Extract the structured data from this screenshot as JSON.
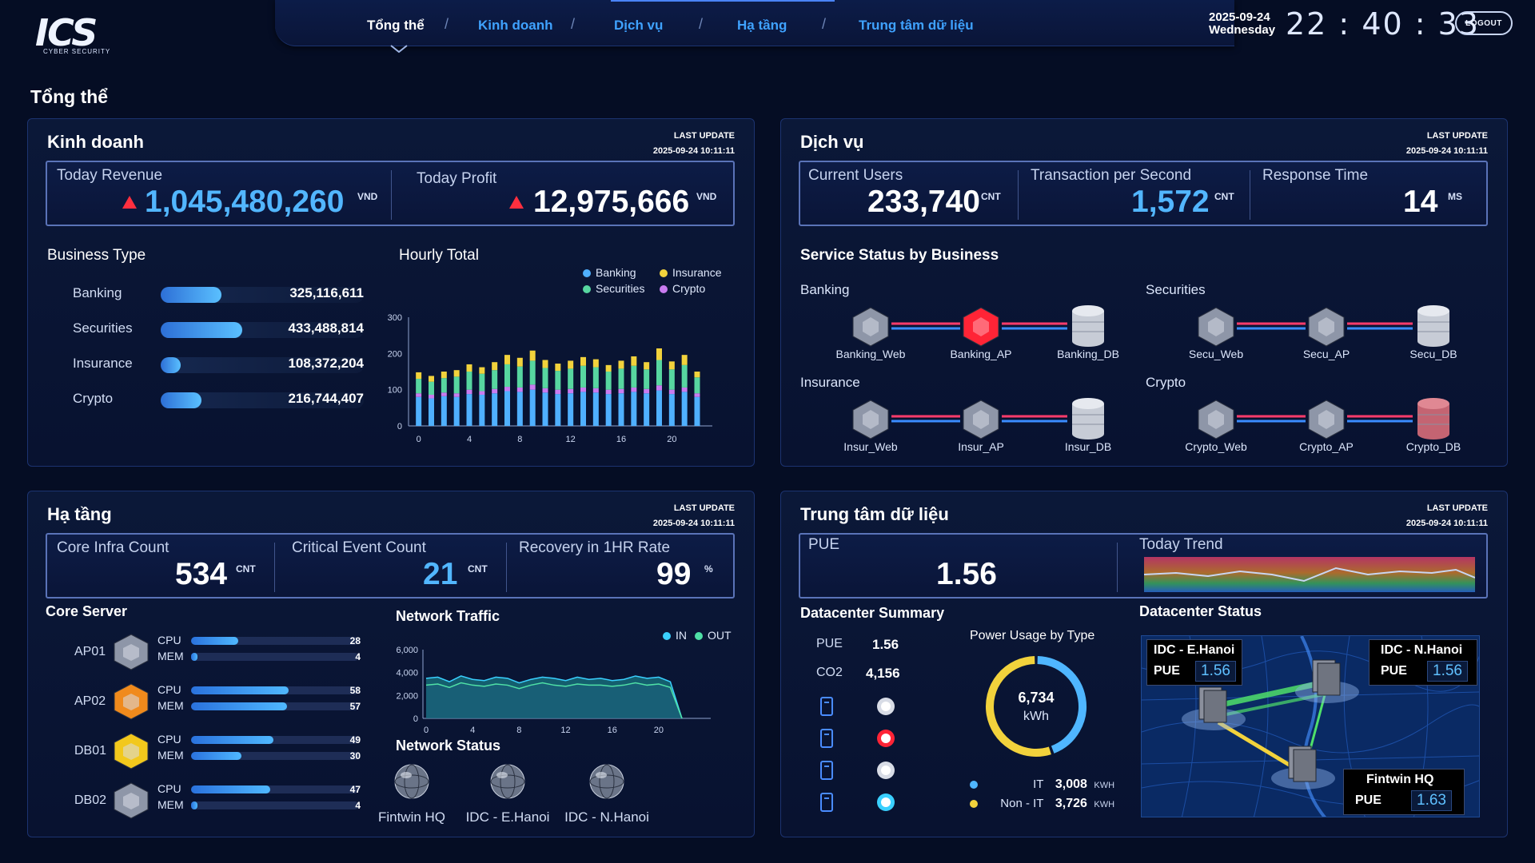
{
  "header": {
    "logo_text": "ICS",
    "logo_subtitle": "CYBER SECURITY",
    "tabs": [
      {
        "label": "Tổng thể"
      },
      {
        "label": "Kinh doanh"
      },
      {
        "label": "Dịch vụ"
      },
      {
        "label": "Hạ tầng"
      },
      {
        "label": "Trung tâm dữ liệu"
      }
    ],
    "active_tab": "Tổng thể",
    "date": "2025-09-24",
    "weekday": "Wednesday",
    "clock": "22 : 40 : 33",
    "logout_label": "LOGOUT"
  },
  "page_title": "Tổng thể",
  "kinhdoanh": {
    "title": "Kinh doanh",
    "last_update_label": "LAST UPDATE",
    "last_update": "2025-09-24  10:11:11",
    "revenue_label": "Today Revenue",
    "revenue_value": "1,045,480,260",
    "revenue_unit": "VND",
    "profit_label": "Today Profit",
    "profit_value": "12,975,666",
    "profit_unit": "VND",
    "business_type_title": "Business Type",
    "business_types": [
      {
        "name": "Banking",
        "value": "325,116,611",
        "fraction": 0.3
      },
      {
        "name": "Securities",
        "value": "433,488,814",
        "fraction": 0.4
      },
      {
        "name": "Insurance",
        "value": "108,372,204",
        "fraction": 0.1
      },
      {
        "name": "Crypto",
        "value": "216,744,407",
        "fraction": 0.2
      }
    ],
    "hourly_title": "Hourly Total",
    "legend": [
      {
        "name": "Banking",
        "color": "#4fb0ff"
      },
      {
        "name": "Insurance",
        "color": "#f2d23c"
      },
      {
        "name": "Securities",
        "color": "#57d6a0"
      },
      {
        "name": "Crypto",
        "color": "#c97cf0"
      }
    ]
  },
  "chart_data": {
    "type": "bar",
    "stacked": true,
    "x": [
      0,
      1,
      2,
      3,
      4,
      5,
      6,
      7,
      8,
      9,
      10,
      11,
      12,
      13,
      14,
      15,
      16,
      17,
      18,
      19,
      20,
      21,
      22
    ],
    "xticks": [
      "0",
      "4",
      "8",
      "12",
      "16",
      "20"
    ],
    "yticks": [
      "0",
      "100",
      "200",
      "300"
    ],
    "ylim": [
      0,
      300
    ],
    "series": [
      {
        "name": "Banking",
        "color": "#4fb0ff",
        "values": [
          80,
          76,
          82,
          80,
          88,
          86,
          90,
          96,
          94,
          100,
          92,
          88,
          90,
          94,
          92,
          88,
          90,
          94,
          90,
          98,
          88,
          94,
          80
        ]
      },
      {
        "name": "Crypto",
        "color": "#c97cf0",
        "values": [
          10,
          10,
          10,
          10,
          12,
          10,
          12,
          12,
          12,
          14,
          12,
          12,
          12,
          12,
          12,
          12,
          12,
          12,
          12,
          14,
          12,
          12,
          10
        ]
      },
      {
        "name": "Securities",
        "color": "#57d6a0",
        "values": [
          40,
          36,
          40,
          46,
          50,
          48,
          52,
          62,
          58,
          66,
          56,
          52,
          56,
          60,
          58,
          50,
          56,
          60,
          54,
          70,
          56,
          62,
          44
        ]
      },
      {
        "name": "Insurance",
        "color": "#f2d23c",
        "values": [
          18,
          16,
          18,
          18,
          20,
          18,
          22,
          26,
          24,
          28,
          22,
          20,
          22,
          24,
          22,
          18,
          22,
          26,
          20,
          32,
          22,
          28,
          16
        ]
      }
    ]
  },
  "dichvu": {
    "title": "Dịch vụ",
    "last_update_label": "LAST UPDATE",
    "last_update": "2025-09-24  10:11:11",
    "users_label": "Current Users",
    "users_value": "233,740",
    "users_unit": "CNT",
    "tps_label": "Transaction per Second",
    "tps_value": "1,572",
    "tps_unit": "CNT",
    "resp_label": "Response Time",
    "resp_value": "14",
    "resp_unit": "MS",
    "status_title": "Service Status by Business",
    "groups": [
      {
        "name": "Banking",
        "nodes": [
          "Banking_Web",
          "Banking_AP",
          "Banking_DB"
        ]
      },
      {
        "name": "Securities",
        "nodes": [
          "Secu_Web",
          "Secu_AP",
          "Secu_DB"
        ]
      },
      {
        "name": "Insurance",
        "nodes": [
          "Insur_Web",
          "Insur_AP",
          "Insur_DB"
        ]
      },
      {
        "name": "Crypto",
        "nodes": [
          "Crypto_Web",
          "Crypto_AP",
          "Crypto_DB"
        ]
      }
    ],
    "alert_color": "#ff2436",
    "normal_color": "#8e96a8"
  },
  "hatang": {
    "title": "Hạ tầng",
    "last_update_label": "LAST UPDATE",
    "last_update": "2025-09-24  10:11:11",
    "core_label": "Core Infra Count",
    "core_value": "534",
    "core_unit": "CNT",
    "critical_label": "Critical Event Count",
    "critical_value": "21",
    "critical_unit": "CNT",
    "recovery_label": "Recovery in 1HR Rate",
    "recovery_value": "99",
    "recovery_unit": "%",
    "core_server_title": "Core Server",
    "servers": [
      {
        "name": "AP01",
        "cpu": "28",
        "mem": "4",
        "cpu_frac": 0.28,
        "mem_frac": 0.04,
        "color": "#8e96a8"
      },
      {
        "name": "AP02",
        "cpu": "58",
        "mem": "57",
        "cpu_frac": 0.58,
        "mem_frac": 0.57,
        "color": "#f08a1c"
      },
      {
        "name": "DB01",
        "cpu": "49",
        "mem": "30",
        "cpu_frac": 0.49,
        "mem_frac": 0.3,
        "color": "#f2c81c"
      },
      {
        "name": "DB02",
        "cpu": "47",
        "mem": "4",
        "cpu_frac": 0.47,
        "mem_frac": 0.04,
        "color": "#8e96a8"
      }
    ],
    "cpu_label": "CPU",
    "mem_label": "MEM",
    "traffic_title": "Network Traffic",
    "traffic_legend": [
      {
        "name": "IN",
        "color": "#3ad0ff"
      },
      {
        "name": "OUT",
        "color": "#4fe0a6"
      }
    ],
    "traffic": {
      "yticks": [
        "0",
        "2,000",
        "4,000",
        "6,000"
      ],
      "xticks": [
        "0",
        "4",
        "8",
        "12",
        "16",
        "20"
      ],
      "ylim": [
        0,
        6000
      ],
      "in": [
        3500,
        3600,
        3200,
        3700,
        3400,
        3300,
        3600,
        3500,
        3100,
        3400,
        3600,
        3500,
        3300,
        3600,
        3400,
        3500,
        3300,
        3400,
        3700,
        3500,
        3600,
        3200
      ],
      "out": [
        2900,
        3000,
        2700,
        3100,
        2900,
        2800,
        3000,
        2900,
        2600,
        2900,
        3100,
        2900,
        2800,
        3000,
        2900,
        2900,
        2800,
        2900,
        3100,
        2900,
        3000,
        2700
      ]
    },
    "net_status_title": "Network Status",
    "net_sites": [
      "Fintwin HQ",
      "IDC - E.Hanoi",
      "IDC - N.Hanoi"
    ]
  },
  "ttdl": {
    "title": "Trung tâm dữ liệu",
    "last_update_label": "LAST UPDATE",
    "last_update": "2025-09-24  10:11:11",
    "pue_label": "PUE",
    "pue_value": "1.56",
    "trend_label": "Today Trend",
    "summary_title": "Datacenter Summary",
    "summary_pue_label": "PUE",
    "summary_pue_value": "1.56",
    "summary_co2_label": "CO2",
    "summary_co2_value": "4,156",
    "status_dots": [
      {
        "icon": "power-meter-icon",
        "color": "#d8dce6"
      },
      {
        "icon": "ups-icon",
        "color": "#ff2436"
      },
      {
        "icon": "fire-extinguisher-icon",
        "color": "#d8dce6"
      },
      {
        "icon": "battery-icon",
        "color": "#3ad0ff"
      }
    ],
    "power_title": "Power Usage by Type",
    "power_total": "6,734",
    "power_total_unit": "kWh",
    "power": [
      {
        "name": "IT",
        "value": "3,008",
        "unit": "KWH",
        "color": "#4fb6ff",
        "amount": 3008
      },
      {
        "name": "Non - IT",
        "value": "3,726",
        "unit": "KWH",
        "color": "#f2d23c",
        "amount": 3726
      }
    ],
    "dc_status_title": "Datacenter Status",
    "sites": [
      {
        "name": "IDC - E.Hanoi",
        "pue_label": "PUE",
        "pue": "1.56"
      },
      {
        "name": "IDC - N.Hanoi",
        "pue_label": "PUE",
        "pue": "1.56"
      },
      {
        "name": "Fintwin HQ",
        "pue_label": "PUE",
        "pue": "1.63"
      }
    ]
  }
}
